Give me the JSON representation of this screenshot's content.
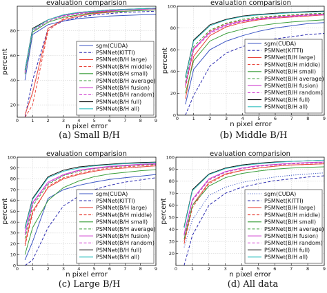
{
  "chart_data": [
    {
      "type": "line",
      "title": "evaluation comparision",
      "caption": "(a)  Small B/H",
      "xlabel": "n pixel error",
      "ylabel": "percent",
      "xlim": [
        0,
        9
      ],
      "ylim": [
        10,
        100
      ],
      "xticks": [
        0,
        1,
        2,
        3,
        4,
        5,
        6,
        7,
        8,
        9
      ],
      "yticks": [
        20,
        40,
        60,
        80
      ],
      "legend_position": "center-right",
      "x": [
        0.5,
        1,
        2,
        3,
        4,
        5,
        6,
        7,
        8,
        9
      ],
      "series": [
        {
          "name": "sgm(CUDA)",
          "color": "#3b55c4",
          "dash": "solid",
          "values": [
            40,
            77,
            85,
            88,
            90,
            91,
            92,
            92.5,
            93,
            93.5
          ]
        },
        {
          "name": "PSMNet(KITTI)",
          "color": "#2a2ab0",
          "dash": "dashed",
          "values": [
            10,
            40,
            82,
            88,
            91,
            93,
            94,
            95,
            95.5,
            96
          ]
        },
        {
          "name": "PSMNet(B/H large)",
          "color": "#e8443a",
          "dash": "solid",
          "values": [
            12,
            30,
            82,
            89,
            92,
            94,
            95,
            96,
            96.5,
            97
          ]
        },
        {
          "name": "PSMNet(B/H middle)",
          "color": "#e8443a",
          "dash": "dashed",
          "values": [
            10,
            20,
            80,
            90,
            93,
            95,
            96,
            97,
            97.5,
            98
          ]
        },
        {
          "name": "PSMNet(B/H small)",
          "color": "#3a9e3a",
          "dash": "solid",
          "values": [
            45,
            79,
            87,
            91,
            93,
            94.5,
            95.5,
            96,
            96.5,
            97
          ]
        },
        {
          "name": "PSMNet(B/H average)",
          "color": "#3a9e3a",
          "dash": "dashed",
          "values": [
            46,
            80,
            88,
            92,
            94,
            95,
            96,
            97,
            97.5,
            98
          ]
        },
        {
          "name": "PSMNet(B/H fusion)",
          "color": "#d040d0",
          "dash": "solid",
          "values": [
            47,
            81,
            89,
            92.5,
            94.5,
            95.5,
            96.5,
            97,
            97.5,
            98
          ]
        },
        {
          "name": "PSMNet(B/H random)",
          "color": "#d040d0",
          "dash": "dashed",
          "values": [
            46,
            80,
            88,
            92,
            94,
            95,
            96,
            97,
            97.5,
            98
          ]
        },
        {
          "name": "PSMNet(B/H full)",
          "color": "#111111",
          "dash": "solid",
          "values": [
            48,
            82,
            89,
            93,
            95,
            96,
            97,
            97.5,
            98,
            98.5
          ]
        },
        {
          "name": "PSMNet(B/H all)",
          "color": "#35c0c0",
          "dash": "solid",
          "values": [
            48,
            81,
            89,
            93,
            95,
            96,
            97,
            97.5,
            98,
            98.5
          ]
        }
      ]
    },
    {
      "type": "line",
      "title": "evaluation comparision",
      "caption": "(b)  Middle B/H",
      "xlabel": "n pixel error",
      "ylabel": "percent",
      "xlim": [
        0,
        9
      ],
      "ylim": [
        0,
        100
      ],
      "xticks": [
        0,
        1,
        2,
        3,
        4,
        5,
        6,
        7,
        8,
        9
      ],
      "yticks": [
        0,
        20,
        40,
        60,
        80,
        100
      ],
      "legend_position": "center-right",
      "x": [
        0.5,
        1,
        2,
        3,
        4,
        5,
        6,
        7,
        8,
        9
      ],
      "series": [
        {
          "name": "sgm(CUDA)",
          "color": "#3b55c4",
          "dash": "solid",
          "values": [
            10,
            42,
            60,
            68,
            73,
            77,
            80,
            82,
            84,
            85
          ]
        },
        {
          "name": "PSMNet(KITTI)",
          "color": "#2a2ab0",
          "dash": "dashed",
          "values": [
            0,
            18,
            45,
            57,
            63,
            67,
            70,
            72,
            74,
            75
          ]
        },
        {
          "name": "PSMNet(B/H large)",
          "color": "#e8443a",
          "dash": "solid",
          "values": [
            15,
            54,
            73,
            81,
            85,
            87.5,
            89,
            90,
            91,
            92
          ]
        },
        {
          "name": "PSMNet(B/H middle)",
          "color": "#e8443a",
          "dash": "dashed",
          "values": [
            25,
            60,
            77,
            84,
            87,
            89,
            90.5,
            91.5,
            92.5,
            93
          ]
        },
        {
          "name": "PSMNet(B/H small)",
          "color": "#3a9e3a",
          "dash": "solid",
          "values": [
            20,
            50,
            68,
            75,
            79,
            82,
            84,
            85.5,
            86.5,
            87.5
          ]
        },
        {
          "name": "PSMNet(B/H average)",
          "color": "#3a9e3a",
          "dash": "dashed",
          "values": [
            30,
            63,
            78,
            84.5,
            88,
            90,
            91,
            92,
            93,
            93.5
          ]
        },
        {
          "name": "PSMNet(B/H fusion)",
          "color": "#d040d0",
          "dash": "solid",
          "values": [
            28,
            61,
            76,
            83,
            86.5,
            88.5,
            90,
            91,
            92,
            92.5
          ]
        },
        {
          "name": "PSMNet(B/H random)",
          "color": "#d040d0",
          "dash": "dashed",
          "values": [
            27,
            60,
            75,
            82,
            86,
            88,
            89.5,
            90.5,
            91.5,
            92
          ]
        },
        {
          "name": "PSMNet(B/H full)",
          "color": "#111111",
          "dash": "solid",
          "values": [
            35,
            69,
            83,
            88,
            91,
            92.5,
            93.5,
            94.5,
            95,
            95.5
          ]
        },
        {
          "name": "PSMNet(B/H all)",
          "color": "#35c0c0",
          "dash": "solid",
          "values": [
            34,
            68,
            82,
            87.5,
            90.5,
            92,
            93,
            94,
            94.5,
            95
          ]
        }
      ]
    },
    {
      "type": "line",
      "title": "evaluation comparision",
      "caption": "(c)  Large B/H",
      "xlabel": "n pixel error",
      "ylabel": "percent",
      "xlim": [
        0,
        9
      ],
      "ylim": [
        0,
        100
      ],
      "xticks": [
        0,
        1,
        2,
        3,
        4,
        5,
        6,
        7,
        8,
        9
      ],
      "yticks": [
        0,
        10,
        20,
        30,
        40,
        50,
        60,
        70,
        80,
        90,
        100
      ],
      "legend_position": "center-right",
      "x": [
        0.5,
        1,
        2,
        3,
        4,
        5,
        6,
        7,
        8,
        9
      ],
      "series": [
        {
          "name": "sgm(CUDA)",
          "color": "#3b55c4",
          "dash": "solid",
          "values": [
            5,
            22,
            62,
            70,
            74,
            77,
            79.5,
            81,
            82.5,
            84
          ]
        },
        {
          "name": "PSMNet(KITTI)",
          "color": "#2a2ab0",
          "dash": "dashed",
          "values": [
            0,
            5,
            35,
            55,
            64,
            70,
            74,
            77,
            79,
            81
          ]
        },
        {
          "name": "PSMNet(B/H large)",
          "color": "#e8443a",
          "dash": "solid",
          "values": [
            20,
            50,
            72,
            80,
            84,
            87,
            89,
            90,
            91,
            92
          ]
        },
        {
          "name": "PSMNet(B/H middle)",
          "color": "#e8443a",
          "dash": "dashed",
          "values": [
            18,
            48,
            73,
            81,
            85,
            88,
            90,
            91,
            92,
            93
          ]
        },
        {
          "name": "PSMNet(B/H small)",
          "color": "#3a9e3a",
          "dash": "solid",
          "values": [
            10,
            35,
            60,
            72,
            78,
            82,
            84.5,
            86,
            87.5,
            88.5
          ]
        },
        {
          "name": "PSMNet(B/H average)",
          "color": "#3a9e3a",
          "dash": "dashed",
          "values": [
            25,
            55,
            75,
            83,
            87,
            89.5,
            91,
            92,
            93,
            93.5
          ]
        },
        {
          "name": "PSMNet(B/H fusion)",
          "color": "#d040d0",
          "dash": "solid",
          "values": [
            30,
            58,
            77,
            84,
            88,
            90,
            91.5,
            92.5,
            93.5,
            94
          ]
        },
        {
          "name": "PSMNet(B/H random)",
          "color": "#d040d0",
          "dash": "dashed",
          "values": [
            28,
            57,
            76,
            83.5,
            87.5,
            89.5,
            91,
            92,
            93,
            93.5
          ]
        },
        {
          "name": "PSMNet(B/H full)",
          "color": "#111111",
          "dash": "solid",
          "values": [
            35,
            62,
            82,
            88,
            91,
            92.5,
            93.5,
            94.5,
            95,
            95.5
          ]
        },
        {
          "name": "PSMNet(B/H all)",
          "color": "#35c0c0",
          "dash": "solid",
          "values": [
            34,
            61,
            81,
            87,
            90,
            92,
            93,
            94,
            94.5,
            95
          ]
        }
      ]
    },
    {
      "type": "line",
      "title": "evaluation comparision",
      "caption": "(d)  All data",
      "xlabel": "n pixel error",
      "ylabel": "percent",
      "xlim": [
        0,
        9
      ],
      "ylim": [
        10,
        100
      ],
      "xticks": [
        0,
        1,
        2,
        3,
        4,
        5,
        6,
        7,
        8,
        9
      ],
      "yticks": [
        20,
        30,
        40,
        50,
        60,
        70,
        80,
        90,
        100
      ],
      "legend_position": "center-right",
      "x": [
        0.5,
        1,
        2,
        3,
        4,
        5,
        6,
        7,
        8,
        9
      ],
      "series": [
        {
          "name": "sgm(CUDA)",
          "color": "#3b55c4",
          "dash": "dotted",
          "values": [
            25,
            48,
            68,
            75,
            79,
            81.5,
            83.5,
            85,
            86,
            87
          ]
        },
        {
          "name": "PSMNet(KITTI)",
          "color": "#2a2ab0",
          "dash": "dashed",
          "values": [
            10,
            35,
            60,
            70,
            75,
            78,
            80.5,
            82,
            83.5,
            84.5
          ]
        },
        {
          "name": "PSMNet(B/H large)",
          "color": "#e8443a",
          "dash": "solid",
          "values": [
            30,
            60,
            79,
            86,
            89,
            91,
            92.5,
            93.5,
            94,
            94.5
          ]
        },
        {
          "name": "PSMNet(B/H middle)",
          "color": "#e8443a",
          "dash": "dashed",
          "values": [
            28,
            58,
            78,
            85.5,
            89,
            91,
            92.5,
            93.5,
            94,
            94.5
          ]
        },
        {
          "name": "PSMNet(B/H small)",
          "color": "#3a9e3a",
          "dash": "solid",
          "values": [
            32,
            60,
            76,
            83,
            86.5,
            88.5,
            90,
            91,
            91.5,
            92
          ]
        },
        {
          "name": "PSMNet(B/H average)",
          "color": "#3a9e3a",
          "dash": "dashed",
          "values": [
            35,
            64,
            81,
            87.5,
            90.5,
            92.5,
            93.5,
            94.5,
            95,
            95.5
          ]
        },
        {
          "name": "PSMNet(B/H fusion)",
          "color": "#d040d0",
          "dash": "solid",
          "values": [
            36,
            65,
            82,
            88,
            91,
            93,
            94,
            95,
            95.5,
            96
          ]
        },
        {
          "name": "PSMNet(B/H random)",
          "color": "#d040d0",
          "dash": "dashed",
          "values": [
            35,
            64,
            81,
            87.5,
            90.5,
            92.5,
            93.5,
            94.5,
            95,
            95.5
          ]
        },
        {
          "name": "PSMNet(B/H full)",
          "color": "#111111",
          "dash": "solid",
          "values": [
            42,
            73,
            86,
            91,
            93.5,
            95,
            96,
            96.5,
            97,
            97.5
          ]
        },
        {
          "name": "PSMNet(B/H all)",
          "color": "#35c0c0",
          "dash": "solid",
          "values": [
            41,
            72,
            85.5,
            90.5,
            93,
            94.5,
            95.5,
            96.5,
            97,
            97.5
          ]
        }
      ]
    }
  ]
}
